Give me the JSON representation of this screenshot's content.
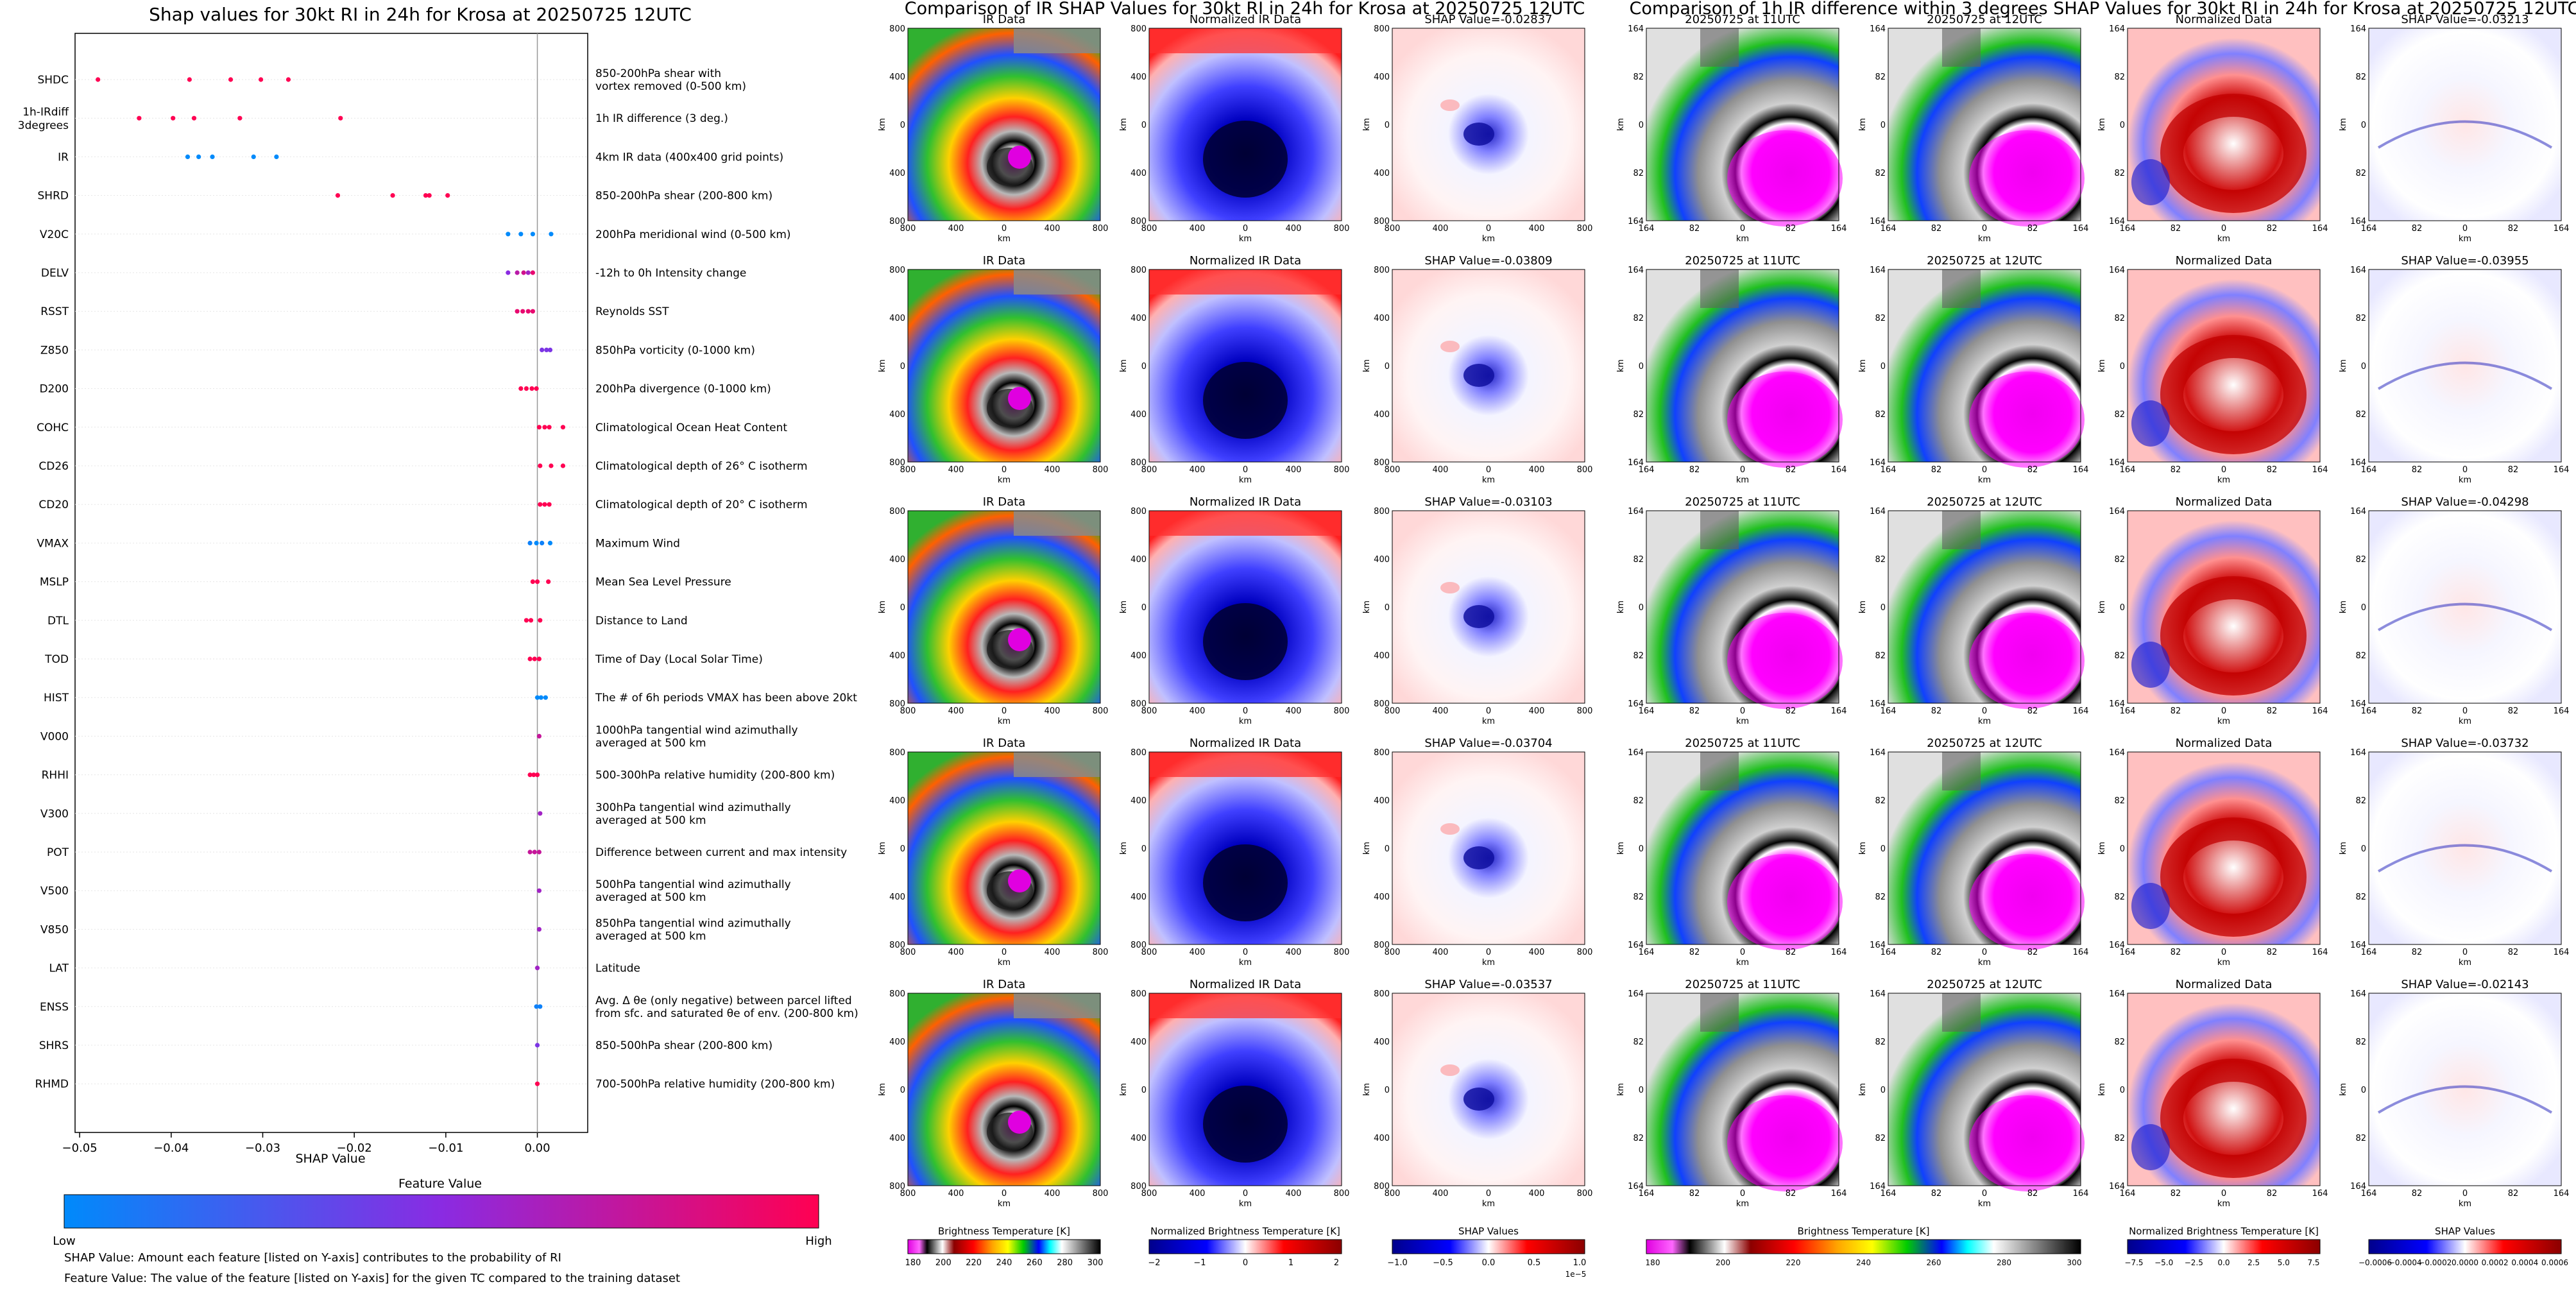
{
  "left_panel": {
    "title": "Shap values for 30kt RI in 24h for Krosa at 20250725 12UTC",
    "xlabel": "SHAP Value",
    "xticks": [
      "−0.05",
      "−0.04",
      "−0.03",
      "−0.02",
      "−0.01",
      "0.00"
    ],
    "colorbar_title": "Feature Value",
    "colorbar_low": "Low",
    "colorbar_high": "High",
    "colors": {
      "low": "#008afb",
      "mid": "#8a2be2",
      "high": "#ff0052"
    },
    "notes": [
      "SHAP Value: Amount each feature [listed on Y-axis] contributes to the probability of RI",
      "Feature Value: The value of the feature [listed on Y-axis] for the given TC compared to the training dataset"
    ]
  },
  "chart_data": {
    "type": "scatter",
    "title": "Shap values for 30kt RI in 24h for Krosa at 20250725 12UTC",
    "xlabel": "SHAP Value",
    "xlim": [
      -0.0505,
      0.0055
    ],
    "features": [
      {
        "code": "SHDC",
        "desc": [
          "850-200hPa shear with",
          "vortex removed (0-500 km)"
        ],
        "points": [
          [
            -0.048,
            1
          ],
          [
            -0.038,
            1
          ],
          [
            -0.0335,
            1
          ],
          [
            -0.0302,
            1
          ],
          [
            -0.0272,
            1
          ]
        ]
      },
      {
        "code": "1h-IRdiff\n3degrees",
        "desc": [
          "1h IR difference (3 deg.)"
        ],
        "points": [
          [
            -0.0435,
            1
          ],
          [
            -0.0398,
            1
          ],
          [
            -0.0375,
            1
          ],
          [
            -0.0325,
            1
          ],
          [
            -0.0215,
            1
          ]
        ]
      },
      {
        "code": "IR",
        "desc": [
          "4km IR data (400x400 grid points)"
        ],
        "points": [
          [
            -0.0382,
            0
          ],
          [
            -0.037,
            0
          ],
          [
            -0.0355,
            0
          ],
          [
            -0.031,
            0
          ],
          [
            -0.0285,
            0
          ]
        ]
      },
      {
        "code": "SHRD",
        "desc": [
          "850-200hPa shear (200-800 km)"
        ],
        "points": [
          [
            -0.0218,
            1
          ],
          [
            -0.0158,
            1
          ],
          [
            -0.0122,
            1
          ],
          [
            -0.0118,
            1
          ],
          [
            -0.0098,
            1
          ]
        ]
      },
      {
        "code": "V20C",
        "desc": [
          "200hPa meridional wind (0-500 km)"
        ],
        "points": [
          [
            -0.0032,
            0
          ],
          [
            -0.0018,
            0
          ],
          [
            -0.0005,
            0
          ],
          [
            0.0015,
            0
          ]
        ]
      },
      {
        "code": "DELV",
        "desc": [
          "-12h to 0h Intensity change"
        ],
        "points": [
          [
            -0.0032,
            0.5
          ],
          [
            -0.0022,
            0.7
          ],
          [
            -0.0015,
            0.8
          ],
          [
            -0.001,
            0.6
          ],
          [
            -0.0005,
            0.9
          ]
        ]
      },
      {
        "code": "RSST",
        "desc": [
          "Reynolds SST"
        ],
        "points": [
          [
            -0.0022,
            0.9
          ],
          [
            -0.0016,
            0.9
          ],
          [
            -0.001,
            0.9
          ],
          [
            -0.0005,
            0.9
          ]
        ]
      },
      {
        "code": "Z850",
        "desc": [
          "850hPa vorticity (0-1000 km)"
        ],
        "points": [
          [
            0.0005,
            0.45
          ],
          [
            0.001,
            0.45
          ],
          [
            0.0014,
            0.45
          ]
        ]
      },
      {
        "code": "D200",
        "desc": [
          "200hPa divergence (0-1000 km)"
        ],
        "points": [
          [
            -0.0018,
            1
          ],
          [
            -0.0012,
            1
          ],
          [
            -0.0006,
            1
          ],
          [
            -0.0001,
            1
          ]
        ]
      },
      {
        "code": "COHC",
        "desc": [
          "Climatological Ocean Heat Content"
        ],
        "points": [
          [
            0.0002,
            1
          ],
          [
            0.0008,
            1
          ],
          [
            0.0013,
            1
          ],
          [
            0.0028,
            1
          ]
        ]
      },
      {
        "code": "CD26",
        "desc": [
          "Climatological depth of 26° C isotherm"
        ],
        "points": [
          [
            0.0003,
            1
          ],
          [
            0.0015,
            1
          ],
          [
            0.0028,
            1
          ]
        ]
      },
      {
        "code": "CD20",
        "desc": [
          "Climatological depth of 20° C isotherm"
        ],
        "points": [
          [
            0.0003,
            1
          ],
          [
            0.0008,
            1
          ],
          [
            0.0013,
            1
          ]
        ]
      },
      {
        "code": "VMAX",
        "desc": [
          "Maximum Wind"
        ],
        "points": [
          [
            -0.0008,
            0.05
          ],
          [
            -0.0001,
            0
          ],
          [
            0.0005,
            0.05
          ],
          [
            0.0014,
            0
          ]
        ]
      },
      {
        "code": "MSLP",
        "desc": [
          "Mean Sea Level Pressure"
        ],
        "points": [
          [
            -0.0005,
            1
          ],
          [
            0,
            1
          ],
          [
            0.0012,
            1
          ]
        ]
      },
      {
        "code": "DTL",
        "desc": [
          "Distance to Land"
        ],
        "points": [
          [
            -0.0012,
            1
          ],
          [
            -0.0007,
            1
          ],
          [
            0.0003,
            1
          ]
        ]
      },
      {
        "code": "TOD",
        "desc": [
          "Time of Day (Local Solar Time)"
        ],
        "points": [
          [
            -0.0008,
            1
          ],
          [
            -0.0003,
            1
          ],
          [
            0.0002,
            1
          ]
        ]
      },
      {
        "code": "HIST",
        "desc": [
          "The # of 6h periods VMAX has been above 20kt"
        ],
        "points": [
          [
            0,
            0
          ],
          [
            0.0004,
            0
          ],
          [
            0.0009,
            0
          ]
        ]
      },
      {
        "code": "V000",
        "desc": [
          "1000hPa tangential wind azimuthally",
          "averaged at 500 km"
        ],
        "points": [
          [
            0.0002,
            0.75
          ]
        ]
      },
      {
        "code": "RHHI",
        "desc": [
          "500-300hPa relative humidity (200-800 km)"
        ],
        "points": [
          [
            -0.0008,
            1
          ],
          [
            -0.0004,
            1
          ],
          [
            0,
            1
          ]
        ]
      },
      {
        "code": "V300",
        "desc": [
          "300hPa tangential wind azimuthally",
          "averaged at 500 km"
        ],
        "points": [
          [
            0.0003,
            0.6
          ]
        ]
      },
      {
        "code": "POT",
        "desc": [
          "Difference between current and max intensity"
        ],
        "points": [
          [
            -0.0008,
            0.75
          ],
          [
            -0.0003,
            0.75
          ],
          [
            0.0002,
            0.75
          ]
        ]
      },
      {
        "code": "V500",
        "desc": [
          "500hPa tangential wind azimuthally",
          "averaged at 500 km"
        ],
        "points": [
          [
            0.0002,
            0.6
          ]
        ]
      },
      {
        "code": "V850",
        "desc": [
          "850hPa tangential wind azimuthally",
          "averaged at 500 km"
        ],
        "points": [
          [
            0.0002,
            0.6
          ]
        ]
      },
      {
        "code": "LAT",
        "desc": [
          "Latitude"
        ],
        "points": [
          [
            0,
            0.6
          ]
        ]
      },
      {
        "code": "ENSS",
        "desc": [
          "Avg. Δ θe (only negative) between parcel lifted",
          "from sfc. and saturated θe of env. (200-800 km)"
        ],
        "points": [
          [
            -0.0001,
            0.05
          ],
          [
            0.0003,
            0.05
          ]
        ]
      },
      {
        "code": "SHRS",
        "desc": [
          "850-500hPa shear (200-800 km)"
        ],
        "points": [
          [
            0,
            0.45
          ]
        ]
      },
      {
        "code": "RHMD",
        "desc": [
          "700-500hPa relative humidity (200-800 km)"
        ],
        "points": [
          [
            0,
            1
          ]
        ]
      }
    ]
  },
  "ir_block": {
    "title": "Comparison of IR SHAP Values for 30kt RI in 24h for Krosa at 20250725 12UTC",
    "col_titles": [
      "IR Data",
      "Normalized IR Data"
    ],
    "shap_titles": [
      "SHAP Value=-0.02837",
      "SHAP Value=-0.03809",
      "SHAP Value=-0.03103",
      "SHAP Value=-0.03704",
      "SHAP Value=-0.03537"
    ],
    "yticks": [
      "800",
      "400",
      "0",
      "400",
      "800"
    ],
    "xticks": [
      "800",
      "400",
      "0",
      "400",
      "800"
    ],
    "axis_unit": "km",
    "cbar_ir_label": "Brightness Temperature [K]",
    "cbar_ir_ticks": [
      "180",
      "200",
      "220",
      "240",
      "260",
      "280",
      "300"
    ],
    "cbar_norm_label": "Normalized Brightness Temperature [K]",
    "cbar_norm_ticks": [
      "−2",
      "−1",
      "0",
      "1",
      "2"
    ],
    "cbar_shap_label": "SHAP Values",
    "cbar_shap_ticks": [
      "−1.0",
      "−0.5",
      "0.0",
      "0.5",
      "1.0"
    ],
    "cbar_shap_exp": "1e−5"
  },
  "diff_block": {
    "title": "Comparison of 1h IR difference within 3 degrees SHAP Values for 30kt RI in 24h for Krosa at 20250725 12UTC",
    "col_titles": [
      "20250725 at 11UTC",
      "20250725 at 12UTC",
      "Normalized Data"
    ],
    "shap_titles": [
      "SHAP Value=-0.03213",
      "SHAP Value=-0.03955",
      "SHAP Value=-0.04298",
      "SHAP Value=-0.03732",
      "SHAP Value=-0.02143"
    ],
    "yticks": [
      "164",
      "82",
      "0",
      "82",
      "164"
    ],
    "xticks": [
      "164",
      "82",
      "0",
      "82",
      "164"
    ],
    "axis_unit": "km",
    "cbar_ir_label": "Brightness Temperature [K]",
    "cbar_ir_ticks": [
      "180",
      "200",
      "220",
      "240",
      "260",
      "280",
      "300"
    ],
    "cbar_norm_label": "Normalized Brightness Temperature [K]",
    "cbar_norm_ticks": [
      "−7.5",
      "−5.0",
      "−2.5",
      "0.0",
      "2.5",
      "5.0",
      "7.5"
    ],
    "cbar_shap_label": "SHAP Values",
    "cbar_shap_ticks": [
      "−0.0006",
      "−0.0004",
      "−0.0002",
      "0.0000",
      "0.0002",
      "0.0004",
      "0.0006"
    ]
  }
}
